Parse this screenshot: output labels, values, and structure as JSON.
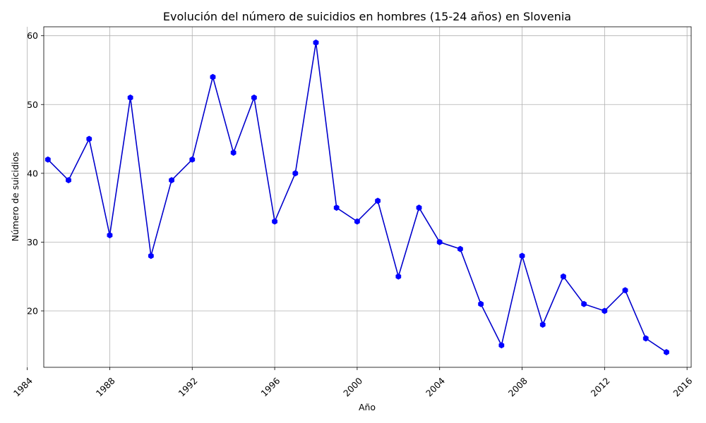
{
  "chart_data": {
    "type": "line",
    "title": "Evolución del número de suicidios en hombres (15-24 años) en Slovenia",
    "xlabel": "Año",
    "ylabel": "Número de suicidios",
    "x": [
      1985,
      1986,
      1987,
      1988,
      1989,
      1990,
      1991,
      1992,
      1993,
      1994,
      1995,
      1996,
      1997,
      1998,
      1999,
      2000,
      2001,
      2002,
      2003,
      2004,
      2005,
      2006,
      2007,
      2008,
      2009,
      2010,
      2011,
      2012,
      2013,
      2014,
      2015
    ],
    "values": [
      42,
      39,
      45,
      31,
      51,
      28,
      39,
      42,
      54,
      43,
      51,
      33,
      40,
      59,
      35,
      33,
      36,
      25,
      35,
      30,
      29,
      21,
      15,
      28,
      18,
      25,
      21,
      20,
      23,
      16,
      14
    ],
    "xlim": [
      1984.8,
      2016.2
    ],
    "ylim": [
      11.8,
      61.3
    ],
    "xticks": [
      "1984",
      "1988",
      "1992",
      "1996",
      "2000",
      "2004",
      "2008",
      "2012",
      "2016"
    ],
    "yticks": [
      "20",
      "30",
      "40",
      "50",
      "60"
    ],
    "grid": true,
    "line_color": "#0000cd",
    "marker_color": "#0000ff",
    "marker": "hexagon"
  }
}
